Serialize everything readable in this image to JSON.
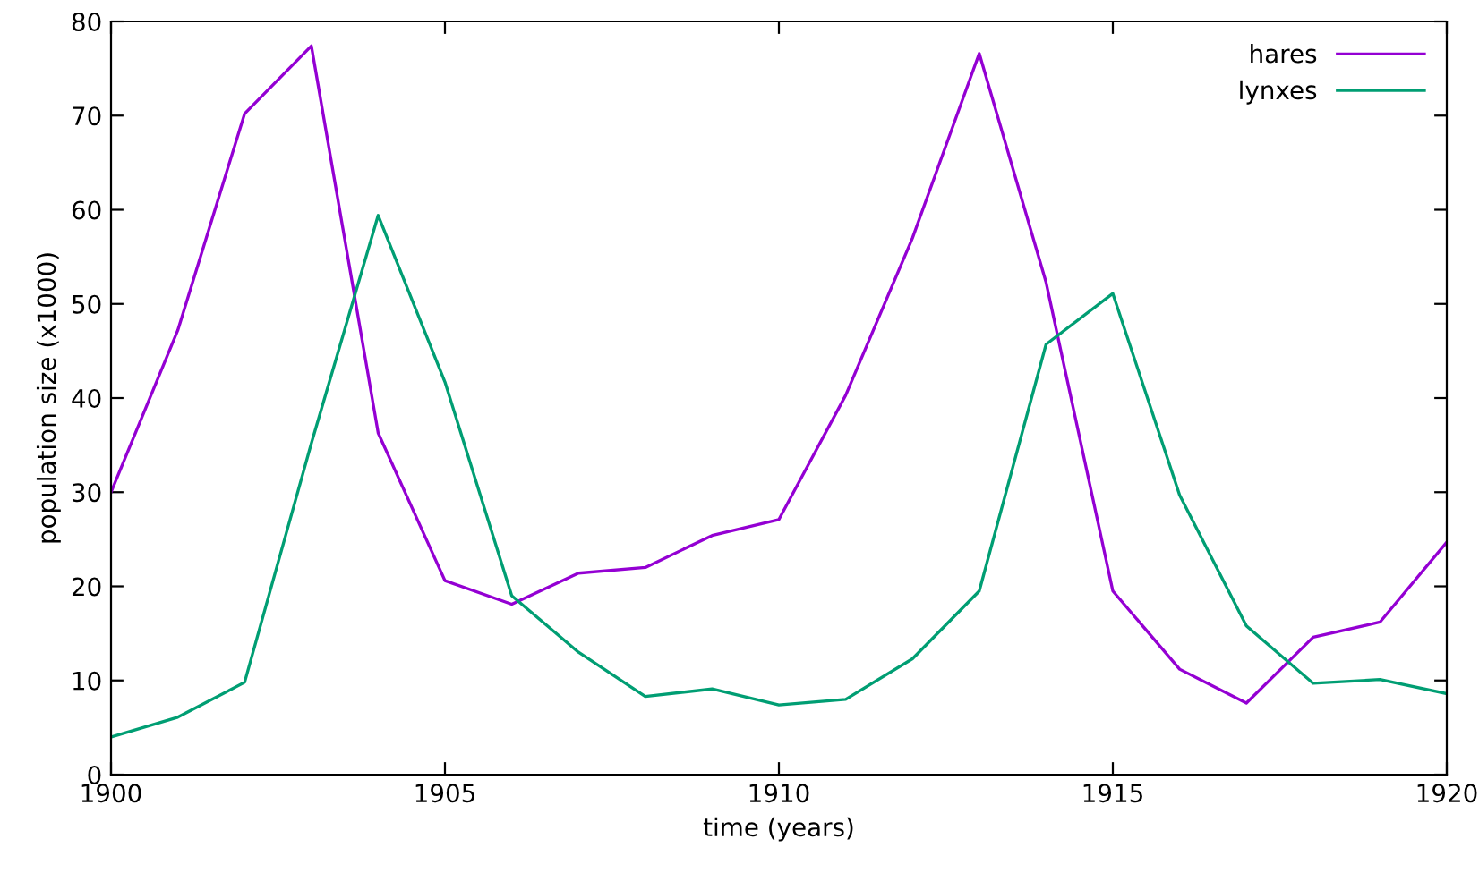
{
  "chart_data": {
    "type": "line",
    "xlabel": "time (years)",
    "ylabel": "population size (x1000)",
    "x": [
      1900,
      1901,
      1902,
      1903,
      1904,
      1905,
      1906,
      1907,
      1908,
      1909,
      1910,
      1911,
      1912,
      1913,
      1914,
      1915,
      1916,
      1917,
      1918,
      1919,
      1920
    ],
    "series": [
      {
        "name": "hares",
        "color": "#9400d3",
        "values": [
          30,
          47.2,
          70.2,
          77.4,
          36.3,
          20.6,
          18.1,
          21.4,
          22,
          25.4,
          27.1,
          40.3,
          57,
          76.6,
          52.3,
          19.5,
          11.2,
          7.6,
          14.6,
          16.2,
          24.7
        ]
      },
      {
        "name": "lynxes",
        "color": "#009e73",
        "values": [
          4,
          6.1,
          9.8,
          35.2,
          59.4,
          41.7,
          19,
          13,
          8.3,
          9.1,
          7.4,
          8,
          12.3,
          19.5,
          45.7,
          51.1,
          29.7,
          15.8,
          9.7,
          10.1,
          8.6
        ]
      }
    ],
    "xlim": [
      1900,
      1920
    ],
    "xticks": [
      1900,
      1905,
      1910,
      1915,
      1920
    ],
    "ylim": [
      0,
      80
    ],
    "yticks": [
      0,
      10,
      20,
      30,
      40,
      50,
      60,
      70,
      80
    ],
    "grid": false,
    "legend": "top right",
    "marker": "none",
    "line_style": "solid"
  }
}
